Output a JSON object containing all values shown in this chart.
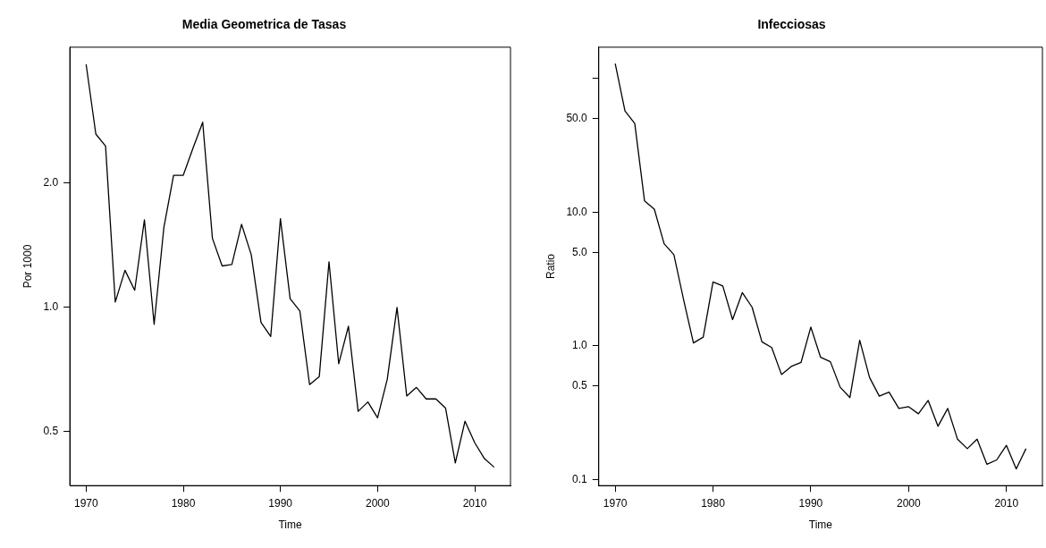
{
  "chart_data": [
    {
      "type": "line",
      "title": "Media Geometrica de Tasas",
      "xlabel": "Time",
      "ylabel": "Por 1000",
      "color": "#000000",
      "line_style": "solid",
      "log": "y",
      "x": [
        1970,
        1971,
        1972,
        1973,
        1974,
        1975,
        1976,
        1977,
        1978,
        1979,
        1980,
        1981,
        1982,
        1983,
        1984,
        1985,
        1986,
        1987,
        1988,
        1989,
        1990,
        1991,
        1992,
        1993,
        1994,
        1995,
        1996,
        1997,
        1998,
        1999,
        2000,
        2001,
        2002,
        2003,
        2004,
        2005,
        2006,
        2007,
        2008,
        2009,
        2010,
        2011,
        2012
      ],
      "values": [
        3.88,
        2.63,
        2.46,
        1.03,
        1.23,
        1.1,
        1.63,
        0.91,
        1.56,
        2.09,
        2.09,
        2.43,
        2.81,
        1.47,
        1.26,
        1.27,
        1.59,
        1.34,
        0.92,
        0.85,
        1.64,
        1.05,
        0.98,
        0.65,
        0.68,
        1.29,
        0.73,
        0.9,
        0.56,
        0.59,
        0.54,
        0.67,
        1.0,
        0.61,
        0.64,
        0.6,
        0.6,
        0.57,
        0.42,
        0.53,
        0.47,
        0.43,
        0.41
      ],
      "xlim": [
        1968.32,
        2013.68
      ],
      "xticks": [
        1970,
        1980,
        1990,
        2000,
        2010
      ],
      "ylim": [
        0.37,
        4.27
      ],
      "yticks": [
        0.5,
        {
          "value": 1,
          "label": "1.0"
        },
        {
          "value": 2,
          "label": "2.0"
        }
      ]
    },
    {
      "type": "line",
      "title": "Infecciosas",
      "xlabel": "Time",
      "ylabel": "Ratio",
      "color": "#000000",
      "line_style": "solid",
      "log": "y",
      "x": [
        1970,
        1971,
        1972,
        1973,
        1974,
        1975,
        1976,
        1977,
        1978,
        1979,
        1980,
        1981,
        1982,
        1983,
        1984,
        1985,
        1986,
        1987,
        1988,
        1989,
        1990,
        1991,
        1992,
        1993,
        1994,
        1995,
        1996,
        1997,
        1998,
        1999,
        2000,
        2001,
        2002,
        2003,
        2004,
        2005,
        2006,
        2007,
        2008,
        2009,
        2010,
        2011,
        2012
      ],
      "values": [
        129,
        57,
        46,
        12.1,
        10.5,
        5.8,
        4.8,
        2.2,
        1.05,
        1.16,
        3.0,
        2.8,
        1.57,
        2.5,
        1.94,
        1.07,
        0.97,
        0.61,
        0.7,
        0.75,
        1.38,
        0.82,
        0.76,
        0.49,
        0.41,
        1.1,
        0.58,
        0.42,
        0.45,
        0.34,
        0.35,
        0.31,
        0.39,
        0.25,
        0.34,
        0.2,
        0.17,
        0.2,
        0.13,
        0.14,
        0.18,
        0.12,
        0.17
      ],
      "xlim": [
        1968.32,
        2013.68
      ],
      "xticks": [
        1970,
        1980,
        1990,
        2000,
        2010
      ],
      "ylim": [
        0.09,
        171
      ],
      "yticks": [
        {
          "value": 0.1,
          "label": "0.1"
        },
        0.5,
        {
          "value": 1,
          "label": "1.0"
        },
        {
          "value": 5,
          "label": "5.0"
        },
        {
          "value": 10,
          "label": "10.0"
        },
        {
          "value": 50,
          "label": "50.0"
        },
        {
          "value": 100,
          "label": null
        }
      ]
    }
  ]
}
